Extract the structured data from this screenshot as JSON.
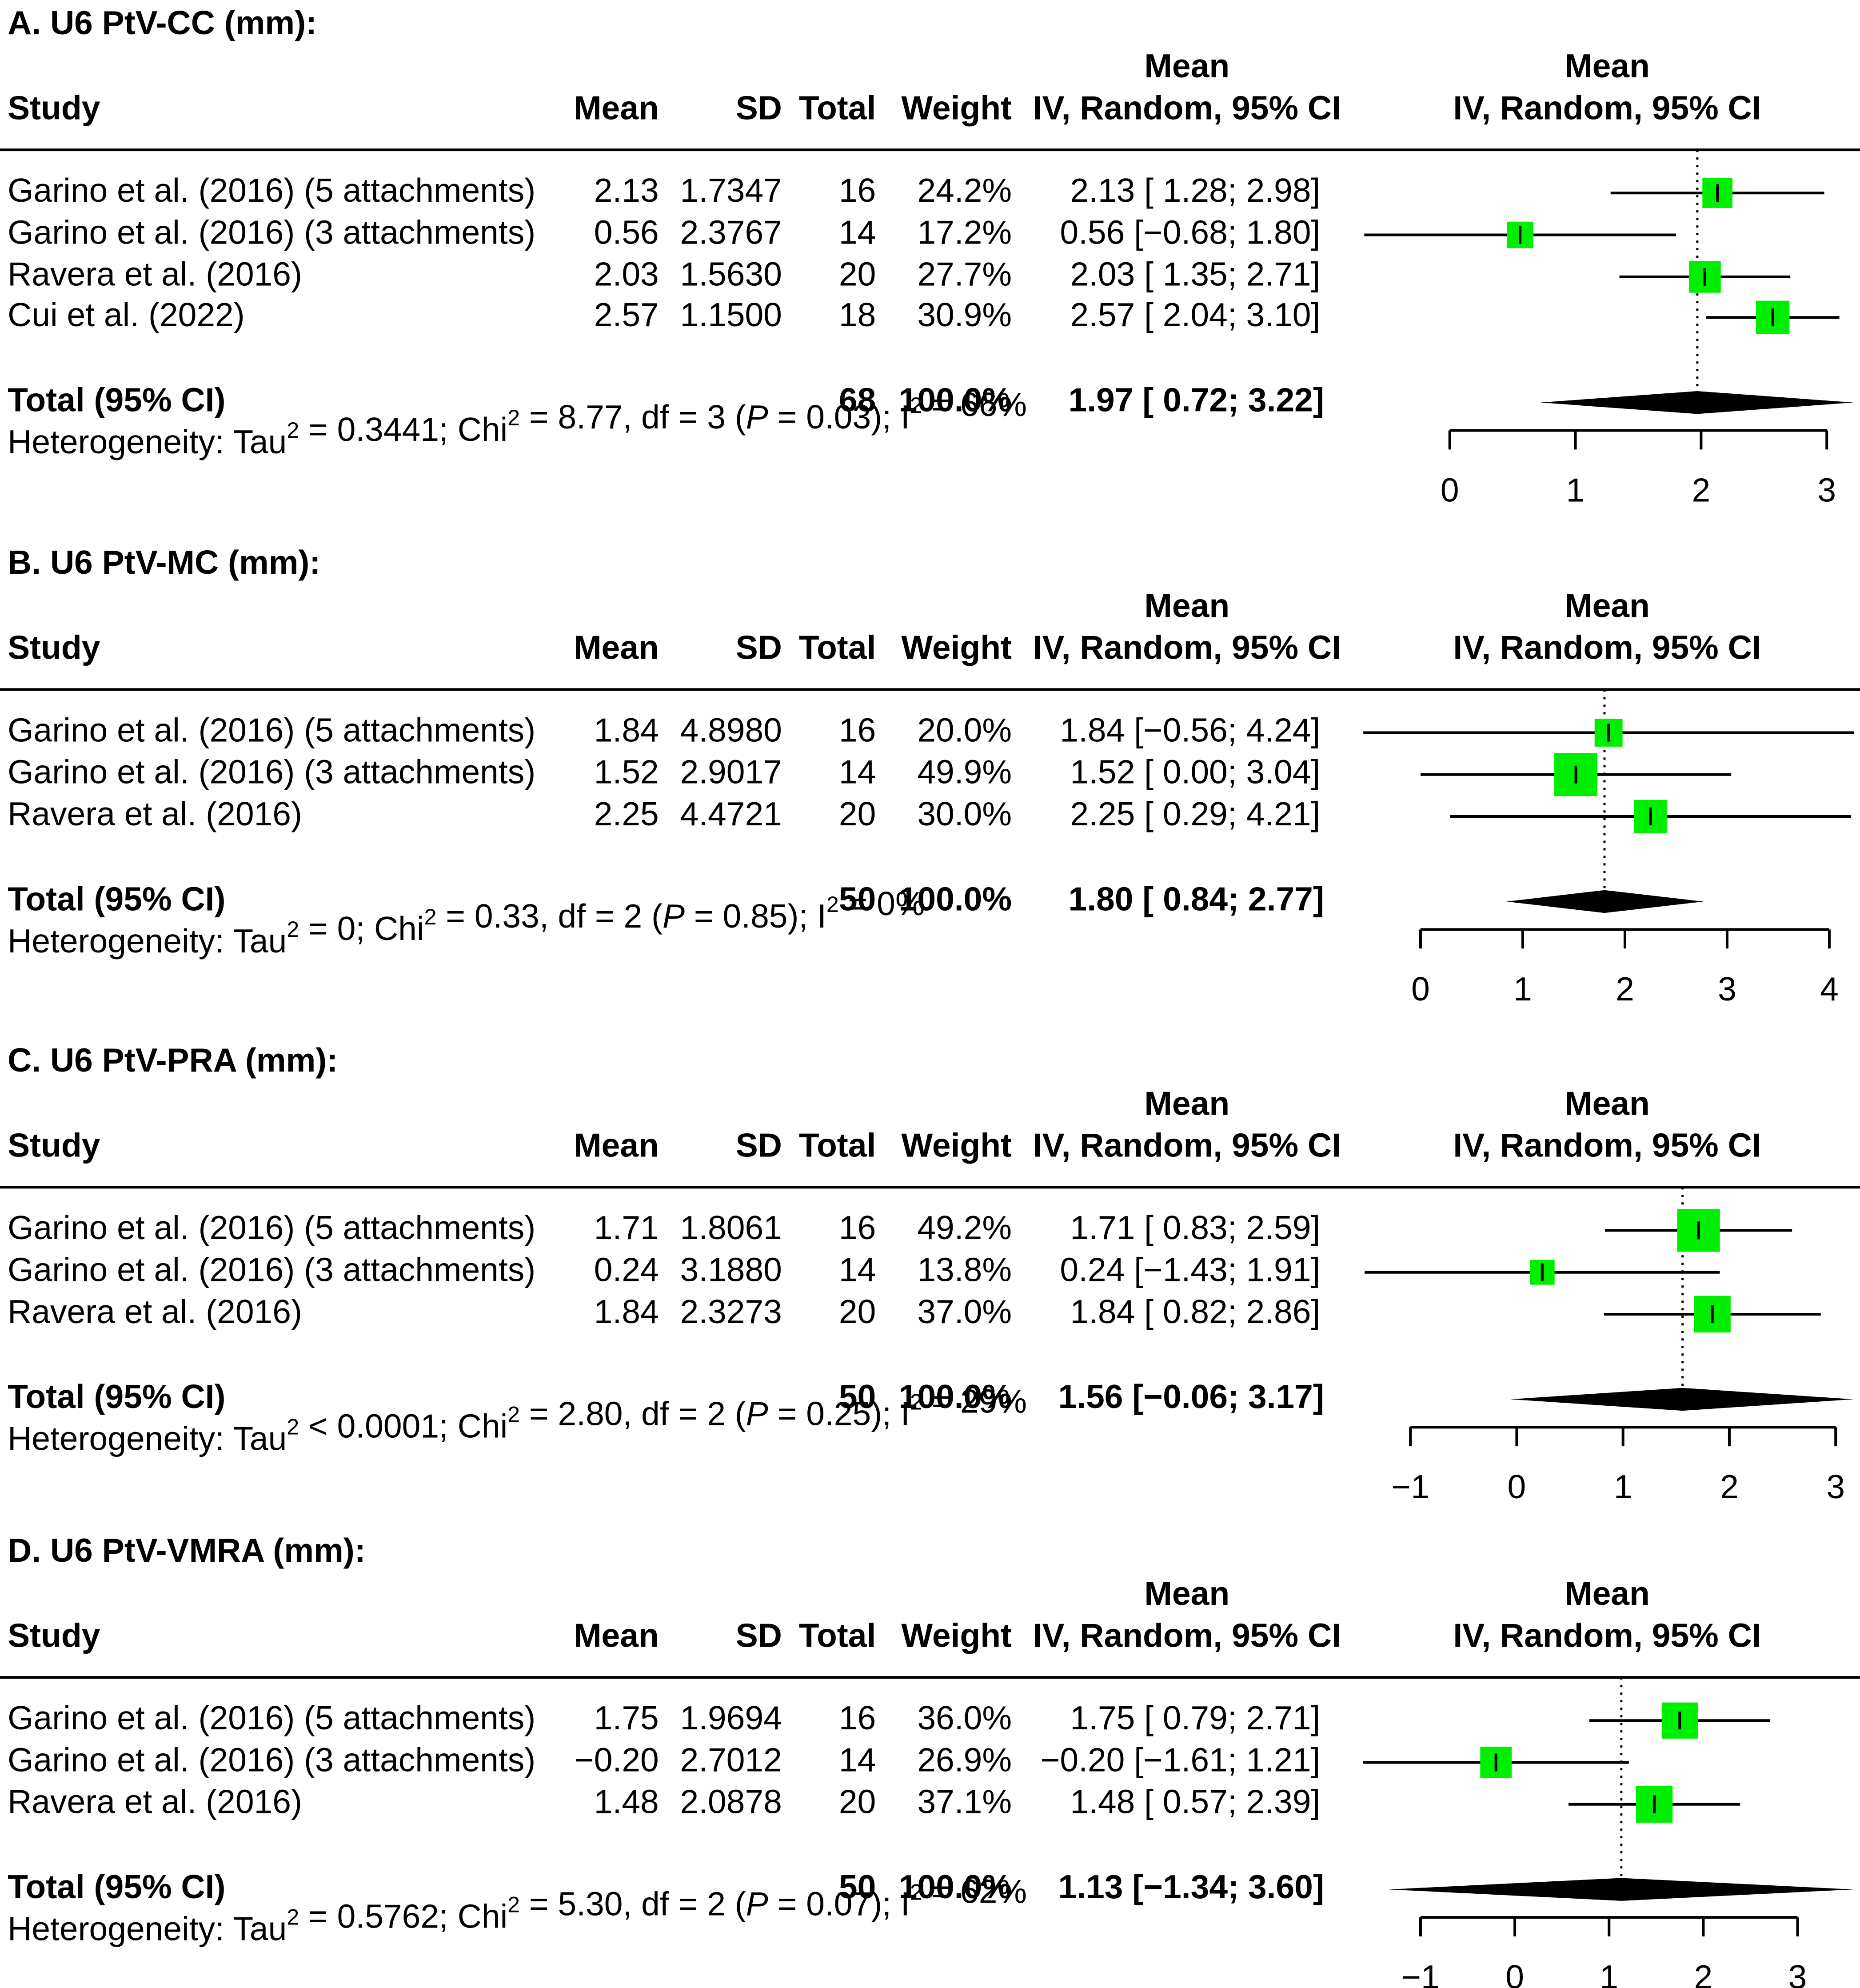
{
  "colors": {
    "box": "#00ee00",
    "ink": "#000000",
    "background": "#ffffff"
  },
  "chart_data": [
    {
      "type": "forest",
      "title": "A. U6 PtV-CC (mm):",
      "columns": {
        "study": "Study",
        "mean": "Mean",
        "sd": "SD",
        "total": "Total",
        "weight": "Weight",
        "ci_top": "Mean",
        "ci_bottom": "IV, Random, 95% CI",
        "plot_top": "Mean",
        "plot_bottom": "IV, Random, 95% CI"
      },
      "studies": [
        {
          "name": "Garino et al. (2016) (5 attachments)",
          "mean": "2.13",
          "sd": "1.7347",
          "total": "16",
          "weight": "24.2%",
          "ci_text": "2.13 [ 1.28; 2.98]",
          "est": 2.13,
          "lo": 1.28,
          "hi": 2.98,
          "w": 24.2
        },
        {
          "name": "Garino et al. (2016) (3 attachments)",
          "mean": "0.56",
          "sd": "2.3767",
          "total": "14",
          "weight": "17.2%",
          "ci_text": "0.56 [−0.68; 1.80]",
          "est": 0.56,
          "lo": -0.68,
          "hi": 1.8,
          "w": 17.2
        },
        {
          "name": "Ravera et al. (2016)",
          "mean": "2.03",
          "sd": "1.5630",
          "total": "20",
          "weight": "27.7%",
          "ci_text": "2.03 [ 1.35; 2.71]",
          "est": 2.03,
          "lo": 1.35,
          "hi": 2.71,
          "w": 27.7
        },
        {
          "name": "Cui et al. (2022)",
          "mean": "2.57",
          "sd": "1.1500",
          "total": "18",
          "weight": "30.9%",
          "ci_text": "2.57 [ 2.04; 3.10]",
          "est": 2.57,
          "lo": 2.04,
          "hi": 3.1,
          "w": 30.9
        }
      ],
      "total": {
        "label": "Total (95% CI)",
        "n": "68",
        "weight": "100.0%",
        "ci_text": "1.97 [ 0.72; 3.22]",
        "est": 1.97,
        "lo": 0.72,
        "hi": 3.22
      },
      "heterogeneity": {
        "tau_sym": "=",
        "tau_val": "0.3441",
        "chi2": "8.77",
        "df": "3",
        "p": "0.03",
        "i2": "66%"
      },
      "xlim": [
        0,
        3
      ],
      "ticks": [
        0,
        1,
        2,
        3
      ],
      "tick_labels": [
        "0",
        "1",
        "2",
        "3"
      ]
    },
    {
      "type": "forest",
      "title": "B. U6 PtV-MC (mm):",
      "columns": {
        "study": "Study",
        "mean": "Mean",
        "sd": "SD",
        "total": "Total",
        "weight": "Weight",
        "ci_top": "Mean",
        "ci_bottom": "IV, Random, 95% CI",
        "plot_top": "Mean",
        "plot_bottom": "IV, Random, 95% CI"
      },
      "studies": [
        {
          "name": "Garino et al. (2016) (5 attachments)",
          "mean": "1.84",
          "sd": "4.8980",
          "total": "16",
          "weight": "20.0%",
          "ci_text": "1.84 [−0.56; 4.24]",
          "est": 1.84,
          "lo": -0.56,
          "hi": 4.24,
          "w": 20.0
        },
        {
          "name": "Garino et al. (2016) (3 attachments)",
          "mean": "1.52",
          "sd": "2.9017",
          "total": "14",
          "weight": "49.9%",
          "ci_text": "1.52 [ 0.00; 3.04]",
          "est": 1.52,
          "lo": 0.0,
          "hi": 3.04,
          "w": 49.9
        },
        {
          "name": "Ravera et al. (2016)",
          "mean": "2.25",
          "sd": "4.4721",
          "total": "20",
          "weight": "30.0%",
          "ci_text": "2.25 [ 0.29; 4.21]",
          "est": 2.25,
          "lo": 0.29,
          "hi": 4.21,
          "w": 30.0
        }
      ],
      "total": {
        "label": "Total (95% CI)",
        "n": "50",
        "weight": "100.0%",
        "ci_text": "1.80 [ 0.84; 2.77]",
        "est": 1.8,
        "lo": 0.84,
        "hi": 2.77
      },
      "heterogeneity": {
        "tau_sym": "=",
        "tau_val": "0",
        "chi2": "0.33",
        "df": "2",
        "p": "0.85",
        "i2": "0%"
      },
      "xlim": [
        0,
        4
      ],
      "ticks": [
        0,
        1,
        2,
        3,
        4
      ],
      "tick_labels": [
        "0",
        "1",
        "2",
        "3",
        "4"
      ]
    },
    {
      "type": "forest",
      "title": "C. U6 PtV-PRA (mm):",
      "columns": {
        "study": "Study",
        "mean": "Mean",
        "sd": "SD",
        "total": "Total",
        "weight": "Weight",
        "ci_top": "Mean",
        "ci_bottom": "IV, Random, 95% CI",
        "plot_top": "Mean",
        "plot_bottom": "IV, Random, 95% CI"
      },
      "studies": [
        {
          "name": "Garino et al. (2016) (5 attachments)",
          "mean": "1.71",
          "sd": "1.8061",
          "total": "16",
          "weight": "49.2%",
          "ci_text": "1.71 [ 0.83; 2.59]",
          "est": 1.71,
          "lo": 0.83,
          "hi": 2.59,
          "w": 49.2
        },
        {
          "name": "Garino et al. (2016) (3 attachments)",
          "mean": "0.24",
          "sd": "3.1880",
          "total": "14",
          "weight": "13.8%",
          "ci_text": "0.24 [−1.43; 1.91]",
          "est": 0.24,
          "lo": -1.43,
          "hi": 1.91,
          "w": 13.8
        },
        {
          "name": "Ravera et al. (2016)",
          "mean": "1.84",
          "sd": "2.3273",
          "total": "20",
          "weight": "37.0%",
          "ci_text": "1.84 [ 0.82; 2.86]",
          "est": 1.84,
          "lo": 0.82,
          "hi": 2.86,
          "w": 37.0
        }
      ],
      "total": {
        "label": "Total (95% CI)",
        "n": "50",
        "weight": "100.0%",
        "ci_text": "1.56 [−0.06; 3.17]",
        "est": 1.56,
        "lo": -0.06,
        "hi": 3.17
      },
      "heterogeneity": {
        "tau_sym": "<",
        "tau_val": "0.0001",
        "chi2": "2.80",
        "df": "2",
        "p": "0.25",
        "i2": "29%"
      },
      "xlim": [
        -1,
        3
      ],
      "ticks": [
        -1,
        0,
        1,
        2,
        3
      ],
      "tick_labels": [
        "−1",
        "0",
        "1",
        "2",
        "3"
      ]
    },
    {
      "type": "forest",
      "title": "D. U6 PtV-VMRA (mm):",
      "columns": {
        "study": "Study",
        "mean": "Mean",
        "sd": "SD",
        "total": "Total",
        "weight": "Weight",
        "ci_top": "Mean",
        "ci_bottom": "IV, Random, 95% CI",
        "plot_top": "Mean",
        "plot_bottom": "IV, Random, 95% CI"
      },
      "studies": [
        {
          "name": "Garino et al. (2016) (5 attachments)",
          "mean": "1.75",
          "sd": "1.9694",
          "total": "16",
          "weight": "36.0%",
          "ci_text": "1.75 [ 0.79; 2.71]",
          "est": 1.75,
          "lo": 0.79,
          "hi": 2.71,
          "w": 36.0
        },
        {
          "name": "Garino et al. (2016) (3 attachments)",
          "mean": "−0.20",
          "sd": "2.7012",
          "total": "14",
          "weight": "26.9%",
          "ci_text": "−0.20 [−1.61; 1.21]",
          "est": -0.2,
          "lo": -1.61,
          "hi": 1.21,
          "w": 26.9
        },
        {
          "name": "Ravera et al. (2016)",
          "mean": "1.48",
          "sd": "2.0878",
          "total": "20",
          "weight": "37.1%",
          "ci_text": "1.48 [ 0.57; 2.39]",
          "est": 1.48,
          "lo": 0.57,
          "hi": 2.39,
          "w": 37.1
        }
      ],
      "total": {
        "label": "Total (95% CI)",
        "n": "50",
        "weight": "100.0%",
        "ci_text": "1.13 [−1.34; 3.60]",
        "est": 1.13,
        "lo": -1.34,
        "hi": 3.6
      },
      "heterogeneity": {
        "tau_sym": "=",
        "tau_val": "0.5762",
        "chi2": "5.30",
        "df": "2",
        "p": "0.07",
        "i2": "62%"
      },
      "xlim": [
        -1,
        3
      ],
      "ticks": [
        -1,
        0,
        1,
        2,
        3
      ],
      "tick_labels": [
        "−1",
        "0",
        "1",
        "2",
        "3"
      ]
    }
  ]
}
